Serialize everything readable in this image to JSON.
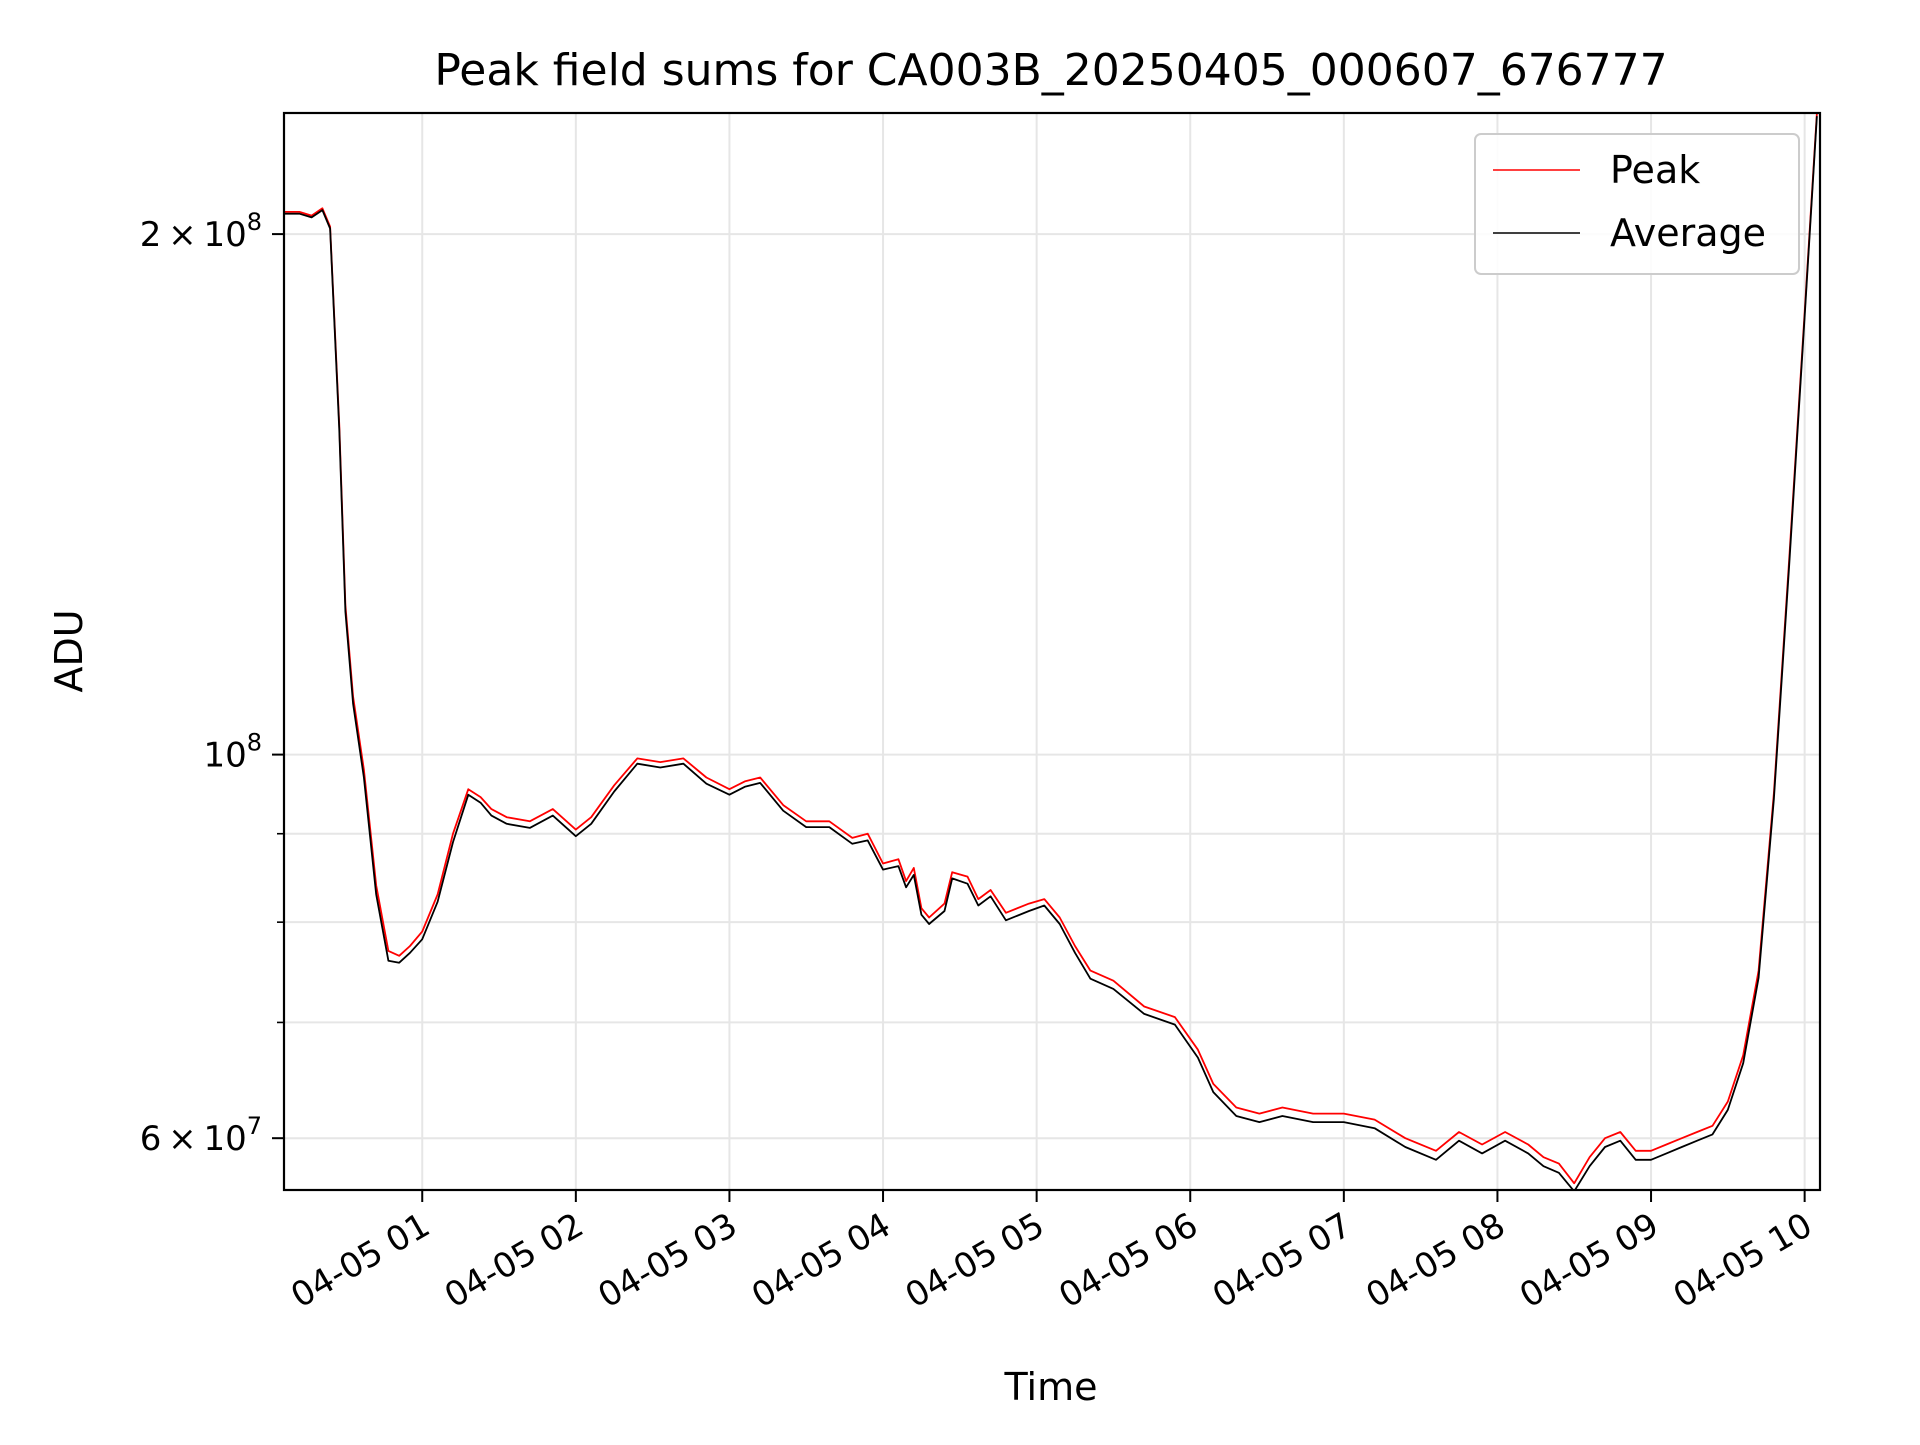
{
  "chart_data": {
    "type": "line",
    "title": "Peak field sums for CA003B_20250405_000607_676777",
    "xlabel": "Time",
    "ylabel": "ADU",
    "yscale": "log",
    "xlim": [
      0.1,
      10.1
    ],
    "ylim": [
      56000000,
      235000000
    ],
    "x_unit": "hours after 2025-04-05 00:00",
    "grid": true,
    "legend_position": "top-right",
    "x_ticks": [
      {
        "value": 1,
        "label": "04-05 01"
      },
      {
        "value": 2,
        "label": "04-05 02"
      },
      {
        "value": 3,
        "label": "04-05 03"
      },
      {
        "value": 4,
        "label": "04-05 04"
      },
      {
        "value": 5,
        "label": "04-05 05"
      },
      {
        "value": 6,
        "label": "04-05 06"
      },
      {
        "value": 7,
        "label": "04-05 07"
      },
      {
        "value": 8,
        "label": "04-05 08"
      },
      {
        "value": 9,
        "label": "04-05 09"
      },
      {
        "value": 10,
        "label": "04-05 10"
      }
    ],
    "y_ticks": [
      {
        "value": 60000000,
        "base": "6",
        "exp": "7"
      },
      {
        "value": 100000000,
        "base": "",
        "exp": "8"
      },
      {
        "value": 200000000,
        "base": "2",
        "exp": "8"
      }
    ],
    "y_minor_ticks": [
      70000000,
      80000000,
      90000000
    ],
    "series": [
      {
        "name": "Peak",
        "color": "#ff0000",
        "x": [
          0.1,
          0.2,
          0.28,
          0.35,
          0.4,
          0.46,
          0.5,
          0.55,
          0.62,
          0.7,
          0.78,
          0.85,
          0.92,
          1.0,
          1.1,
          1.2,
          1.3,
          1.38,
          1.45,
          1.55,
          1.7,
          1.85,
          2.0,
          2.1,
          2.25,
          2.4,
          2.55,
          2.7,
          2.85,
          3.0,
          3.1,
          3.2,
          3.35,
          3.5,
          3.65,
          3.8,
          3.9,
          4.0,
          4.1,
          4.15,
          4.2,
          4.25,
          4.3,
          4.4,
          4.45,
          4.55,
          4.62,
          4.7,
          4.8,
          4.95,
          5.05,
          5.15,
          5.25,
          5.35,
          5.5,
          5.7,
          5.9,
          6.05,
          6.15,
          6.3,
          6.45,
          6.6,
          6.8,
          7.0,
          7.2,
          7.4,
          7.6,
          7.75,
          7.9,
          8.05,
          8.2,
          8.3,
          8.4,
          8.5,
          8.6,
          8.7,
          8.8,
          8.9,
          9.0,
          9.1,
          9.2,
          9.3,
          9.4,
          9.5,
          9.6,
          9.7,
          9.8,
          9.9,
          10.0,
          10.08
        ],
        "values": [
          206000000,
          206000000,
          205000000,
          207000000,
          202000000,
          155000000,
          122000000,
          108000000,
          98000000,
          84000000,
          77000000,
          76500000,
          77500000,
          79000000,
          83000000,
          90000000,
          95500000,
          94500000,
          93000000,
          92000000,
          91500000,
          93000000,
          90500000,
          92000000,
          96000000,
          99500000,
          99000000,
          99500000,
          97000000,
          95500000,
          96500000,
          97000000,
          93500000,
          91500000,
          91500000,
          89500000,
          90000000,
          86500000,
          87000000,
          84500000,
          86000000,
          81500000,
          80500000,
          82000000,
          85500000,
          85000000,
          82500000,
          83500000,
          81000000,
          82000000,
          82500000,
          80500000,
          77500000,
          75000000,
          74000000,
          71500000,
          70500000,
          67500000,
          64500000,
          62500000,
          62000000,
          62500000,
          62000000,
          62000000,
          61500000,
          60000000,
          59000000,
          60500000,
          59500000,
          60500000,
          59500000,
          58500000,
          58000000,
          56500000,
          58500000,
          60000000,
          60500000,
          59000000,
          59000000,
          59500000,
          60000000,
          60500000,
          61000000,
          63000000,
          67000000,
          75000000,
          95000000,
          130000000,
          180000000,
          235000000
        ]
      },
      {
        "name": "Average",
        "color": "#000000",
        "x": [
          0.1,
          0.2,
          0.28,
          0.35,
          0.4,
          0.46,
          0.5,
          0.55,
          0.62,
          0.7,
          0.78,
          0.85,
          0.92,
          1.0,
          1.1,
          1.2,
          1.3,
          1.38,
          1.45,
          1.55,
          1.7,
          1.85,
          2.0,
          2.1,
          2.25,
          2.4,
          2.55,
          2.7,
          2.85,
          3.0,
          3.1,
          3.2,
          3.35,
          3.5,
          3.65,
          3.8,
          3.9,
          4.0,
          4.1,
          4.15,
          4.2,
          4.25,
          4.3,
          4.4,
          4.45,
          4.55,
          4.62,
          4.7,
          4.8,
          4.95,
          5.05,
          5.15,
          5.25,
          5.35,
          5.5,
          5.7,
          5.9,
          6.05,
          6.15,
          6.3,
          6.45,
          6.6,
          6.8,
          7.0,
          7.2,
          7.4,
          7.6,
          7.75,
          7.9,
          8.05,
          8.2,
          8.3,
          8.4,
          8.5,
          8.6,
          8.7,
          8.8,
          8.9,
          9.0,
          9.1,
          9.2,
          9.3,
          9.4,
          9.5,
          9.6,
          9.7,
          9.8,
          9.9,
          10.0,
          10.08
        ],
        "values": [
          205500000,
          205500000,
          204500000,
          206500000,
          201500000,
          154000000,
          121000000,
          107000000,
          97000000,
          83000000,
          76000000,
          75800000,
          76800000,
          78200000,
          82200000,
          89000000,
          94800000,
          93800000,
          92200000,
          91200000,
          90700000,
          92200000,
          89700000,
          91200000,
          95200000,
          98800000,
          98300000,
          98800000,
          96200000,
          94800000,
          95800000,
          96300000,
          92800000,
          90800000,
          90800000,
          88800000,
          89200000,
          85800000,
          86200000,
          83800000,
          85200000,
          80800000,
          79800000,
          81200000,
          84800000,
          84200000,
          81800000,
          82800000,
          80200000,
          81200000,
          81800000,
          79800000,
          76800000,
          74200000,
          73200000,
          70800000,
          69800000,
          66800000,
          63800000,
          61800000,
          61300000,
          61800000,
          61300000,
          61300000,
          60800000,
          59300000,
          58300000,
          59800000,
          58800000,
          59800000,
          58800000,
          57800000,
          57300000,
          55900000,
          57800000,
          59300000,
          59800000,
          58300000,
          58300000,
          58800000,
          59300000,
          59800000,
          60300000,
          62300000,
          66300000,
          74300000,
          94300000,
          129000000,
          179000000,
          234000000
        ]
      }
    ]
  }
}
